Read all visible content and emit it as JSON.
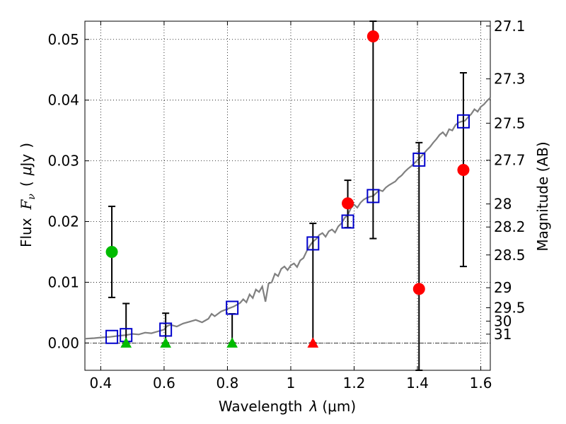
{
  "chart_data": {
    "type": "scatter",
    "xlabel_text": "Wavelength",
    "xlabel_symbol": "λ",
    "xlabel_unit": "(μm)",
    "ylabel_text": "Flux",
    "ylabel_symbol": "F",
    "ylabel_subscript": "ν",
    "ylabel_unit_open": "(",
    "ylabel_unit_symbol": "μ",
    "ylabel_unit_rest": "Jy",
    "ylabel_unit_close": ")",
    "y2label": "Magnitude (AB)",
    "xlim": [
      0.35,
      1.63
    ],
    "ylim": [
      -0.0045,
      0.053
    ],
    "x_ticks": [
      0.4,
      0.6,
      0.8,
      1.0,
      1.2,
      1.4,
      1.6
    ],
    "x_tick_labels": [
      "0.4",
      "0.6",
      "0.8",
      "1",
      "1.2",
      "1.4",
      "1.6"
    ],
    "y_ticks": [
      0.0,
      0.01,
      0.02,
      0.03,
      0.04,
      0.05
    ],
    "y_tick_labels": [
      "0.00",
      "0.01",
      "0.02",
      "0.03",
      "0.04",
      "0.05"
    ],
    "mag_ticks": [
      {
        "label": "27.1",
        "flux": 0.0522
      },
      {
        "label": "27.3",
        "flux": 0.0435
      },
      {
        "label": "27.5",
        "flux": 0.0362
      },
      {
        "label": "27.7",
        "flux": 0.0301
      },
      {
        "label": "28",
        "flux": 0.0229
      },
      {
        "label": "28.2",
        "flux": 0.0191
      },
      {
        "label": "28.5",
        "flux": 0.0145
      },
      {
        "label": "29",
        "flux": 0.0091
      },
      {
        "label": "29.5",
        "flux": 0.0058
      },
      {
        "label": "30",
        "flux": 0.0036
      },
      {
        "label": "31",
        "flux": 0.00145
      }
    ],
    "grid": true,
    "zero_line": 0,
    "model_color": "#808080",
    "model_spectrum": [
      [
        0.35,
        0.0007
      ],
      [
        0.38,
        0.0008
      ],
      [
        0.4,
        0.0009
      ],
      [
        0.43,
        0.001
      ],
      [
        0.46,
        0.0012
      ],
      [
        0.48,
        0.0013
      ],
      [
        0.5,
        0.0015
      ],
      [
        0.52,
        0.0014
      ],
      [
        0.54,
        0.0017
      ],
      [
        0.56,
        0.0016
      ],
      [
        0.58,
        0.0019
      ],
      [
        0.6,
        0.0022
      ],
      [
        0.61,
        0.0028
      ],
      [
        0.62,
        0.003
      ],
      [
        0.64,
        0.0027
      ],
      [
        0.66,
        0.0032
      ],
      [
        0.68,
        0.0035
      ],
      [
        0.7,
        0.0038
      ],
      [
        0.72,
        0.0034
      ],
      [
        0.74,
        0.004
      ],
      [
        0.75,
        0.0048
      ],
      [
        0.76,
        0.0044
      ],
      [
        0.78,
        0.0052
      ],
      [
        0.8,
        0.0056
      ],
      [
        0.82,
        0.006
      ],
      [
        0.84,
        0.0066
      ],
      [
        0.85,
        0.0072
      ],
      [
        0.86,
        0.0067
      ],
      [
        0.87,
        0.008
      ],
      [
        0.88,
        0.0074
      ],
      [
        0.89,
        0.0088
      ],
      [
        0.9,
        0.0084
      ],
      [
        0.91,
        0.0093
      ],
      [
        0.92,
        0.0068
      ],
      [
        0.93,
        0.0098
      ],
      [
        0.94,
        0.01
      ],
      [
        0.95,
        0.0114
      ],
      [
        0.96,
        0.011
      ],
      [
        0.97,
        0.0122
      ],
      [
        0.98,
        0.0126
      ],
      [
        0.99,
        0.012
      ],
      [
        1.0,
        0.0128
      ],
      [
        1.01,
        0.0131
      ],
      [
        1.02,
        0.0125
      ],
      [
        1.03,
        0.0136
      ],
      [
        1.04,
        0.014
      ],
      [
        1.05,
        0.0151
      ],
      [
        1.06,
        0.016
      ],
      [
        1.07,
        0.0167
      ],
      [
        1.08,
        0.0171
      ],
      [
        1.09,
        0.0178
      ],
      [
        1.1,
        0.0181
      ],
      [
        1.11,
        0.0175
      ],
      [
        1.12,
        0.0184
      ],
      [
        1.13,
        0.0187
      ],
      [
        1.14,
        0.0182
      ],
      [
        1.15,
        0.0192
      ],
      [
        1.16,
        0.0197
      ],
      [
        1.17,
        0.0206
      ],
      [
        1.18,
        0.0211
      ],
      [
        1.19,
        0.0222
      ],
      [
        1.2,
        0.0228
      ],
      [
        1.21,
        0.0223
      ],
      [
        1.22,
        0.0231
      ],
      [
        1.23,
        0.0236
      ],
      [
        1.24,
        0.0239
      ],
      [
        1.25,
        0.0241
      ],
      [
        1.26,
        0.0242
      ],
      [
        1.27,
        0.0247
      ],
      [
        1.28,
        0.0252
      ],
      [
        1.29,
        0.025
      ],
      [
        1.3,
        0.0256
      ],
      [
        1.31,
        0.026
      ],
      [
        1.32,
        0.0263
      ],
      [
        1.33,
        0.0266
      ],
      [
        1.34,
        0.0272
      ],
      [
        1.35,
        0.0276
      ],
      [
        1.36,
        0.0282
      ],
      [
        1.37,
        0.0287
      ],
      [
        1.38,
        0.0291
      ],
      [
        1.39,
        0.0296
      ],
      [
        1.4,
        0.0301
      ],
      [
        1.41,
        0.0306
      ],
      [
        1.42,
        0.0312
      ],
      [
        1.43,
        0.0318
      ],
      [
        1.44,
        0.0323
      ],
      [
        1.45,
        0.033
      ],
      [
        1.46,
        0.0336
      ],
      [
        1.47,
        0.0343
      ],
      [
        1.48,
        0.0347
      ],
      [
        1.49,
        0.0341
      ],
      [
        1.5,
        0.0352
      ],
      [
        1.51,
        0.035
      ],
      [
        1.52,
        0.0359
      ],
      [
        1.53,
        0.0363
      ],
      [
        1.54,
        0.0365
      ],
      [
        1.55,
        0.0366
      ],
      [
        1.56,
        0.0372
      ],
      [
        1.57,
        0.0377
      ],
      [
        1.58,
        0.0385
      ],
      [
        1.59,
        0.0381
      ],
      [
        1.6,
        0.0389
      ],
      [
        1.61,
        0.0393
      ],
      [
        1.62,
        0.0399
      ],
      [
        1.63,
        0.0404
      ]
    ],
    "series": [
      {
        "name": "model-band-fluxes",
        "marker": "open-square",
        "color": "#0000cc",
        "points": [
          {
            "x": 0.435,
            "y": 0.001
          },
          {
            "x": 0.48,
            "y": 0.0013
          },
          {
            "x": 0.605,
            "y": 0.0022
          },
          {
            "x": 0.815,
            "y": 0.0058
          },
          {
            "x": 1.07,
            "y": 0.0164
          },
          {
            "x": 1.18,
            "y": 0.02
          },
          {
            "x": 1.26,
            "y": 0.0242
          },
          {
            "x": 1.405,
            "y": 0.0302
          },
          {
            "x": 1.545,
            "y": 0.0365
          }
        ]
      },
      {
        "name": "optical-detections",
        "marker": "circle",
        "color": "#00bb00",
        "points": [
          {
            "x": 0.435,
            "y": 0.015,
            "err_low": 0.0075,
            "err_high": 0.0225
          }
        ]
      },
      {
        "name": "optical-upper-limits",
        "marker": "triangle",
        "color": "#00bb00",
        "points": [
          {
            "x": 0.48,
            "y": 0.0,
            "err_low": 0.0,
            "err_high": 0.0065
          },
          {
            "x": 0.605,
            "y": 0.0,
            "err_low": 0.0,
            "err_high": 0.0049
          },
          {
            "x": 0.815,
            "y": 0.0,
            "err_low": 0.0,
            "err_high": 0.0048
          }
        ]
      },
      {
        "name": "nir-upper-limits",
        "marker": "triangle",
        "color": "#ff0000",
        "points": [
          {
            "x": 1.07,
            "y": 0.0,
            "err_low": 0.0,
            "err_high": 0.0197
          }
        ]
      },
      {
        "name": "nir-detections",
        "marker": "circle",
        "color": "#ff0000",
        "points": [
          {
            "x": 1.18,
            "y": 0.023,
            "err_low": 0.019,
            "err_high": 0.0268
          },
          {
            "x": 1.26,
            "y": 0.0505,
            "err_low": 0.0172,
            "err_high": 0.053
          },
          {
            "x": 1.405,
            "y": 0.0089,
            "err_low": -0.0045,
            "err_high": 0.033
          },
          {
            "x": 1.545,
            "y": 0.0285,
            "err_low": 0.0126,
            "err_high": 0.0445
          }
        ]
      }
    ]
  }
}
